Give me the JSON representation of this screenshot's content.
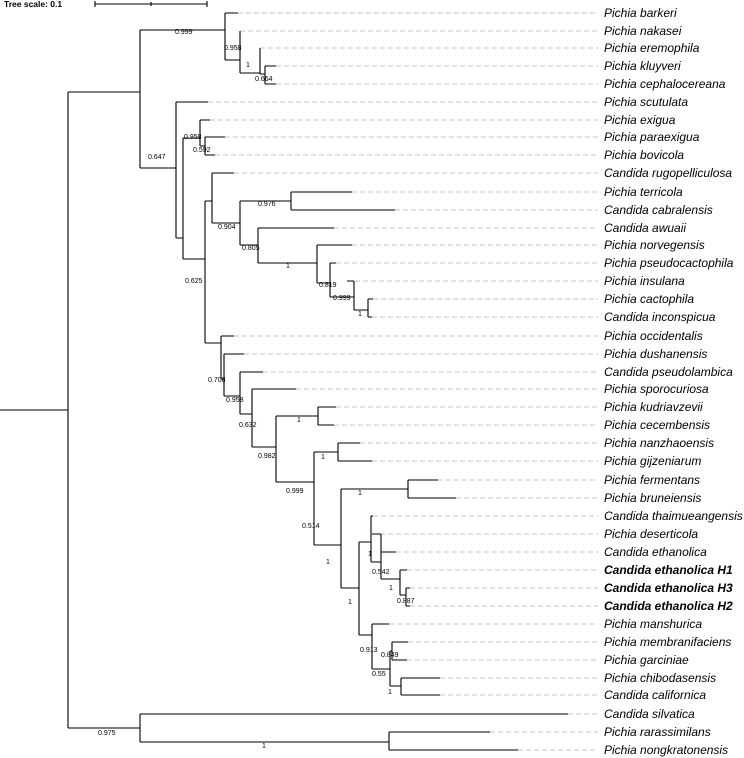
{
  "scale": {
    "label": "Tree scale: 0.1"
  },
  "taxa": [
    {
      "id": "t1",
      "label": "Pichia barkeri"
    },
    {
      "id": "t2",
      "label": "Pichia nakasei"
    },
    {
      "id": "t3",
      "label": "Pichia eremophila"
    },
    {
      "id": "t4",
      "label": "Pichia kluyveri"
    },
    {
      "id": "t5",
      "label": "Pichia cephalocereana"
    },
    {
      "id": "t6",
      "label": "Pichia scutulata"
    },
    {
      "id": "t7",
      "label": "Pichia exigua"
    },
    {
      "id": "t8",
      "label": "Pichia paraexigua"
    },
    {
      "id": "t9",
      "label": "Pichia bovicola"
    },
    {
      "id": "t10",
      "label": "Candida rugopelliculosa"
    },
    {
      "id": "t11",
      "label": "Pichia terricola"
    },
    {
      "id": "t12",
      "label": "Candida cabralensis"
    },
    {
      "id": "t13",
      "label": "Candida awuaii"
    },
    {
      "id": "t14",
      "label": "Pichia norvegensis"
    },
    {
      "id": "t15",
      "label": "Pichia pseudocactophila"
    },
    {
      "id": "t16",
      "label": "Pichia insulana"
    },
    {
      "id": "t17",
      "label": "Pichia cactophila"
    },
    {
      "id": "t18",
      "label": "Candida inconspicua"
    },
    {
      "id": "t19",
      "label": "Pichia occidentalis"
    },
    {
      "id": "t20",
      "label": "Pichia dushanensis"
    },
    {
      "id": "t21",
      "label": "Candida pseudolambica"
    },
    {
      "id": "t22",
      "label": "Pichia sporocuriosa"
    },
    {
      "id": "t23",
      "label": "Pichia kudriavzevii"
    },
    {
      "id": "t24",
      "label": "Pichia cecembensis"
    },
    {
      "id": "t25",
      "label": "Pichia nanzhaoensis"
    },
    {
      "id": "t26",
      "label": "Pichia gijzeniarum"
    },
    {
      "id": "t27",
      "label": "Pichia fermentans"
    },
    {
      "id": "t28",
      "label": "Pichia bruneiensis"
    },
    {
      "id": "t29",
      "label": "Candida thaimueangensis"
    },
    {
      "id": "t30",
      "label": "Pichia deserticola"
    },
    {
      "id": "t31",
      "label": "Candida ethanolica"
    },
    {
      "id": "t32",
      "label": "Candida ethanolica H1",
      "bold": true
    },
    {
      "id": "t33",
      "label": "Candida ethanolica H3",
      "bold": true
    },
    {
      "id": "t34",
      "label": "Candida ethanolica H2",
      "bold": true
    },
    {
      "id": "t35",
      "label": "Pichia manshurica"
    },
    {
      "id": "t36",
      "label": "Pichia membranifaciens"
    },
    {
      "id": "t37",
      "label": "Pichia garciniae"
    },
    {
      "id": "t38",
      "label": "Pichia chibodasensis"
    },
    {
      "id": "t39",
      "label": "Candida californica"
    },
    {
      "id": "t40",
      "label": "Candida silvatica"
    },
    {
      "id": "t41",
      "label": "Pichia rarassimilans"
    },
    {
      "id": "t42",
      "label": "Pichia nongkratonensis"
    }
  ],
  "support_values": [
    {
      "id": "n1",
      "label": "0.999"
    },
    {
      "id": "n2",
      "label": "0.958"
    },
    {
      "id": "n3",
      "label": "1"
    },
    {
      "id": "n4",
      "label": "0.664"
    },
    {
      "id": "n5",
      "label": "0.647"
    },
    {
      "id": "n6",
      "label": "0.958"
    },
    {
      "id": "n7",
      "label": "0.592"
    },
    {
      "id": "n8",
      "label": "0.976"
    },
    {
      "id": "n9",
      "label": "0.904"
    },
    {
      "id": "n10",
      "label": "0.805"
    },
    {
      "id": "n11",
      "label": "1"
    },
    {
      "id": "n12",
      "label": "0.819"
    },
    {
      "id": "n13",
      "label": "0.999"
    },
    {
      "id": "n14",
      "label": "1"
    },
    {
      "id": "n15",
      "label": "0.625"
    },
    {
      "id": "n16",
      "label": "0.708"
    },
    {
      "id": "n17",
      "label": "0.958"
    },
    {
      "id": "n18",
      "label": "0.632"
    },
    {
      "id": "n19",
      "label": "1"
    },
    {
      "id": "n20",
      "label": "0.982"
    },
    {
      "id": "n21",
      "label": "1"
    },
    {
      "id": "n22",
      "label": "0.999"
    },
    {
      "id": "n23",
      "label": "1"
    },
    {
      "id": "n24",
      "label": "0.514"
    },
    {
      "id": "n25",
      "label": "1"
    },
    {
      "id": "n26",
      "label": "1"
    },
    {
      "id": "n27",
      "label": "0.542"
    },
    {
      "id": "n28",
      "label": "1"
    },
    {
      "id": "n29",
      "label": "0.887"
    },
    {
      "id": "n30",
      "label": "1"
    },
    {
      "id": "n31",
      "label": "0.913"
    },
    {
      "id": "n32",
      "label": "0.849"
    },
    {
      "id": "n33",
      "label": "0.55"
    },
    {
      "id": "n34",
      "label": "1"
    },
    {
      "id": "n35",
      "label": "0.975"
    },
    {
      "id": "n36",
      "label": "1"
    }
  ]
}
